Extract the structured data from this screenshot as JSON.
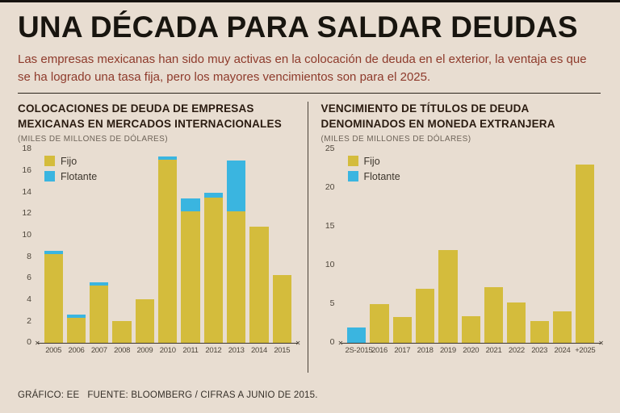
{
  "header": {
    "title": "UNA DÉCADA PARA SALDAR DEUDAS",
    "subtitle": "Las empresas mexicanas han sido muy activas en la colocación de deuda en el exterior, la ventaja es que se ha logrado una tasa fija, pero los mayores vencimientos son para el 2025."
  },
  "footer": {
    "credit": "GRÁFICO: EE",
    "source": "FUENTE: BLOOMBERG / CIFRAS A JUNIO DE 2015."
  },
  "icons": {
    "axis_end_mark": "✕"
  },
  "colors": {
    "background": "#e8ddd1",
    "fijo": "#d4bc3c",
    "flotante": "#3ab5e0",
    "subtitle": "#8e3a2b",
    "axis": "#3e372e"
  },
  "chart_data": [
    {
      "type": "bar",
      "stacked": true,
      "title": "COLOCACIONES DE DEUDA DE EMPRESAS MEXICANAS EN MERCADOS INTERNACIONALES",
      "subtitle": "(MILES DE MILLONES DE DÓLARES)",
      "categories": [
        "2005",
        "2006",
        "2007",
        "2008",
        "2009",
        "2010",
        "2011",
        "2012",
        "2013",
        "2014",
        "2015"
      ],
      "series": [
        {
          "name": "Fijo",
          "color_key": "fijo",
          "values": [
            8.2,
            2.3,
            5.3,
            2.0,
            4.0,
            17.0,
            12.2,
            13.5,
            12.2,
            10.8,
            6.3
          ]
        },
        {
          "name": "Flotante",
          "color_key": "flotante",
          "values": [
            0.3,
            0.3,
            0.3,
            0,
            0,
            0.3,
            1.2,
            0.4,
            4.7,
            0,
            0
          ]
        }
      ],
      "ylim": [
        0,
        18
      ],
      "ytick_step": 2,
      "legend_position": "top-left",
      "grid": false
    },
    {
      "type": "bar",
      "stacked": true,
      "title": "VENCIMIENTO DE TÍTULOS DE DEUDA DENOMINADOS EN MONEDA EXTRANJERA",
      "subtitle": "(MILES DE MILLONES DE DÓLARES)",
      "categories": [
        "2S-2015",
        "2016",
        "2017",
        "2018",
        "2019",
        "2020",
        "2021",
        "2022",
        "2023",
        "2024",
        "+2025"
      ],
      "series": [
        {
          "name": "Fijo",
          "color_key": "fijo",
          "values": [
            0,
            5.0,
            3.3,
            7.0,
            12.0,
            3.4,
            7.2,
            5.2,
            2.8,
            4.0,
            23.0
          ]
        },
        {
          "name": "Flotante",
          "color_key": "flotante",
          "values": [
            2.0,
            0,
            0,
            0,
            0,
            0,
            0,
            0,
            0,
            0,
            0
          ]
        }
      ],
      "ylim": [
        0,
        25
      ],
      "ytick_step": 5,
      "legend_position": "top-left",
      "grid": false
    }
  ]
}
